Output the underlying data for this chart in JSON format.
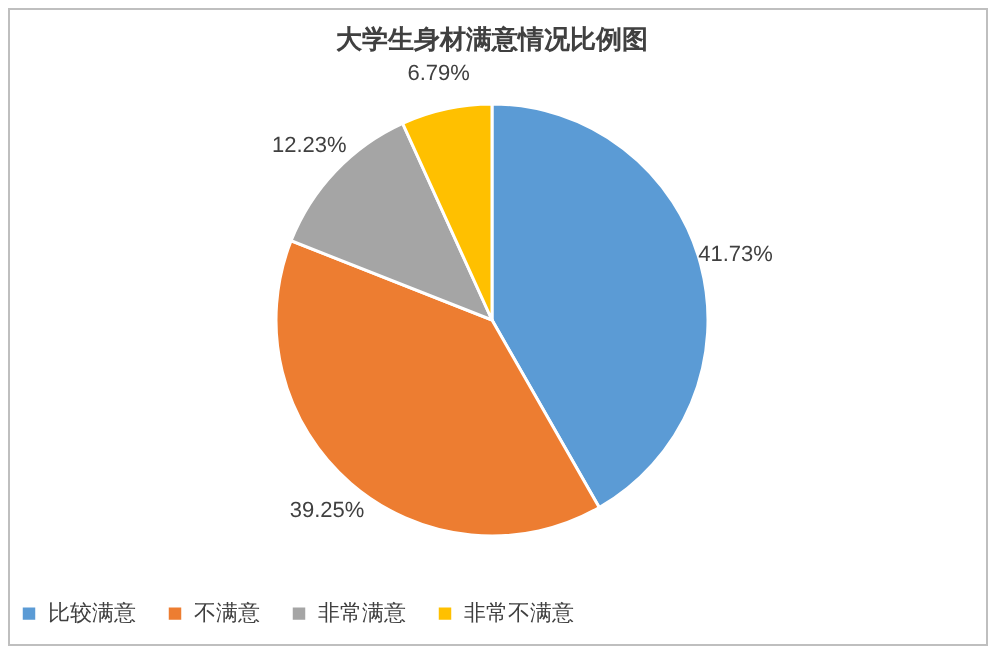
{
  "chart_data": {
    "type": "pie",
    "title": "大学生身材满意情况比例图",
    "categories": [
      "比较满意",
      "不满意",
      "非常满意",
      "非常不满意"
    ],
    "values": [
      41.73,
      39.25,
      12.23,
      6.79
    ],
    "value_labels": [
      "41.73%",
      "39.25%",
      "12.23%",
      "6.79%"
    ],
    "colors": [
      "#5b9bd5",
      "#ed7d31",
      "#a5a5a5",
      "#ffc000"
    ],
    "legend": "bottom"
  }
}
